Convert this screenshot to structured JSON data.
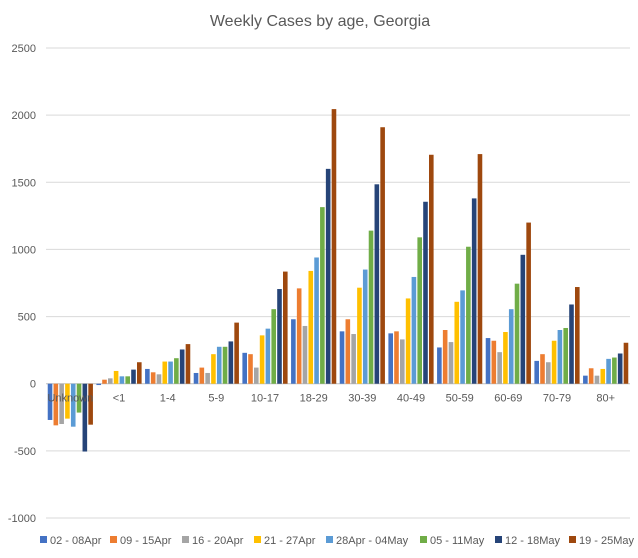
{
  "chart_data": {
    "type": "bar",
    "title": "Weekly Cases by age, Georgia",
    "xlabel": "",
    "ylabel": "",
    "ylim": [
      -1000,
      2500
    ],
    "yticks": [
      -1000,
      -500,
      0,
      500,
      1000,
      1500,
      2000,
      2500
    ],
    "ytick_labels": [
      "-1000",
      "-500",
      "0",
      "500",
      "1000",
      "1500",
      "2000",
      "2500"
    ],
    "grid": true,
    "legend_position": "bottom",
    "categories": [
      "Unknown",
      "<1",
      "1-4",
      "5-9",
      "10-17",
      "18-29",
      "30-39",
      "40-49",
      "50-59",
      "60-69",
      "70-79",
      "80+"
    ],
    "series": [
      {
        "name": "02 - 08Apr",
        "color": "#4472c4",
        "values": [
          -270,
          -10,
          110,
          80,
          230,
          480,
          390,
          375,
          270,
          340,
          170,
          60
        ]
      },
      {
        "name": "09 - 15Apr",
        "color": "#ed7d31",
        "values": [
          -310,
          30,
          85,
          120,
          220,
          710,
          480,
          390,
          400,
          320,
          220,
          115
        ]
      },
      {
        "name": "16 - 20Apr",
        "color": "#a5a5a5",
        "values": [
          -300,
          40,
          70,
          80,
          120,
          430,
          370,
          330,
          310,
          235,
          160,
          60
        ]
      },
      {
        "name": "21 - 27Apr",
        "color": "#ffc000",
        "values": [
          -260,
          95,
          165,
          220,
          360,
          840,
          715,
          635,
          610,
          385,
          320,
          110
        ]
      },
      {
        "name": "28Apr - 04May",
        "color": "#5b9bd5",
        "values": [
          -320,
          55,
          165,
          275,
          410,
          940,
          850,
          795,
          695,
          555,
          400,
          185
        ]
      },
      {
        "name": "05 - 11May",
        "color": "#70ad47",
        "values": [
          -215,
          55,
          190,
          275,
          555,
          1315,
          1140,
          1090,
          1020,
          745,
          415,
          195
        ]
      },
      {
        "name": "12 - 18May",
        "color": "#264478",
        "values": [
          -505,
          105,
          255,
          315,
          705,
          1600,
          1485,
          1355,
          1380,
          960,
          590,
          225
        ]
      },
      {
        "name": "19 - 25May",
        "color": "#9e480e",
        "values": [
          -305,
          160,
          295,
          455,
          835,
          2045,
          1910,
          1705,
          1710,
          1200,
          720,
          305
        ]
      }
    ]
  }
}
